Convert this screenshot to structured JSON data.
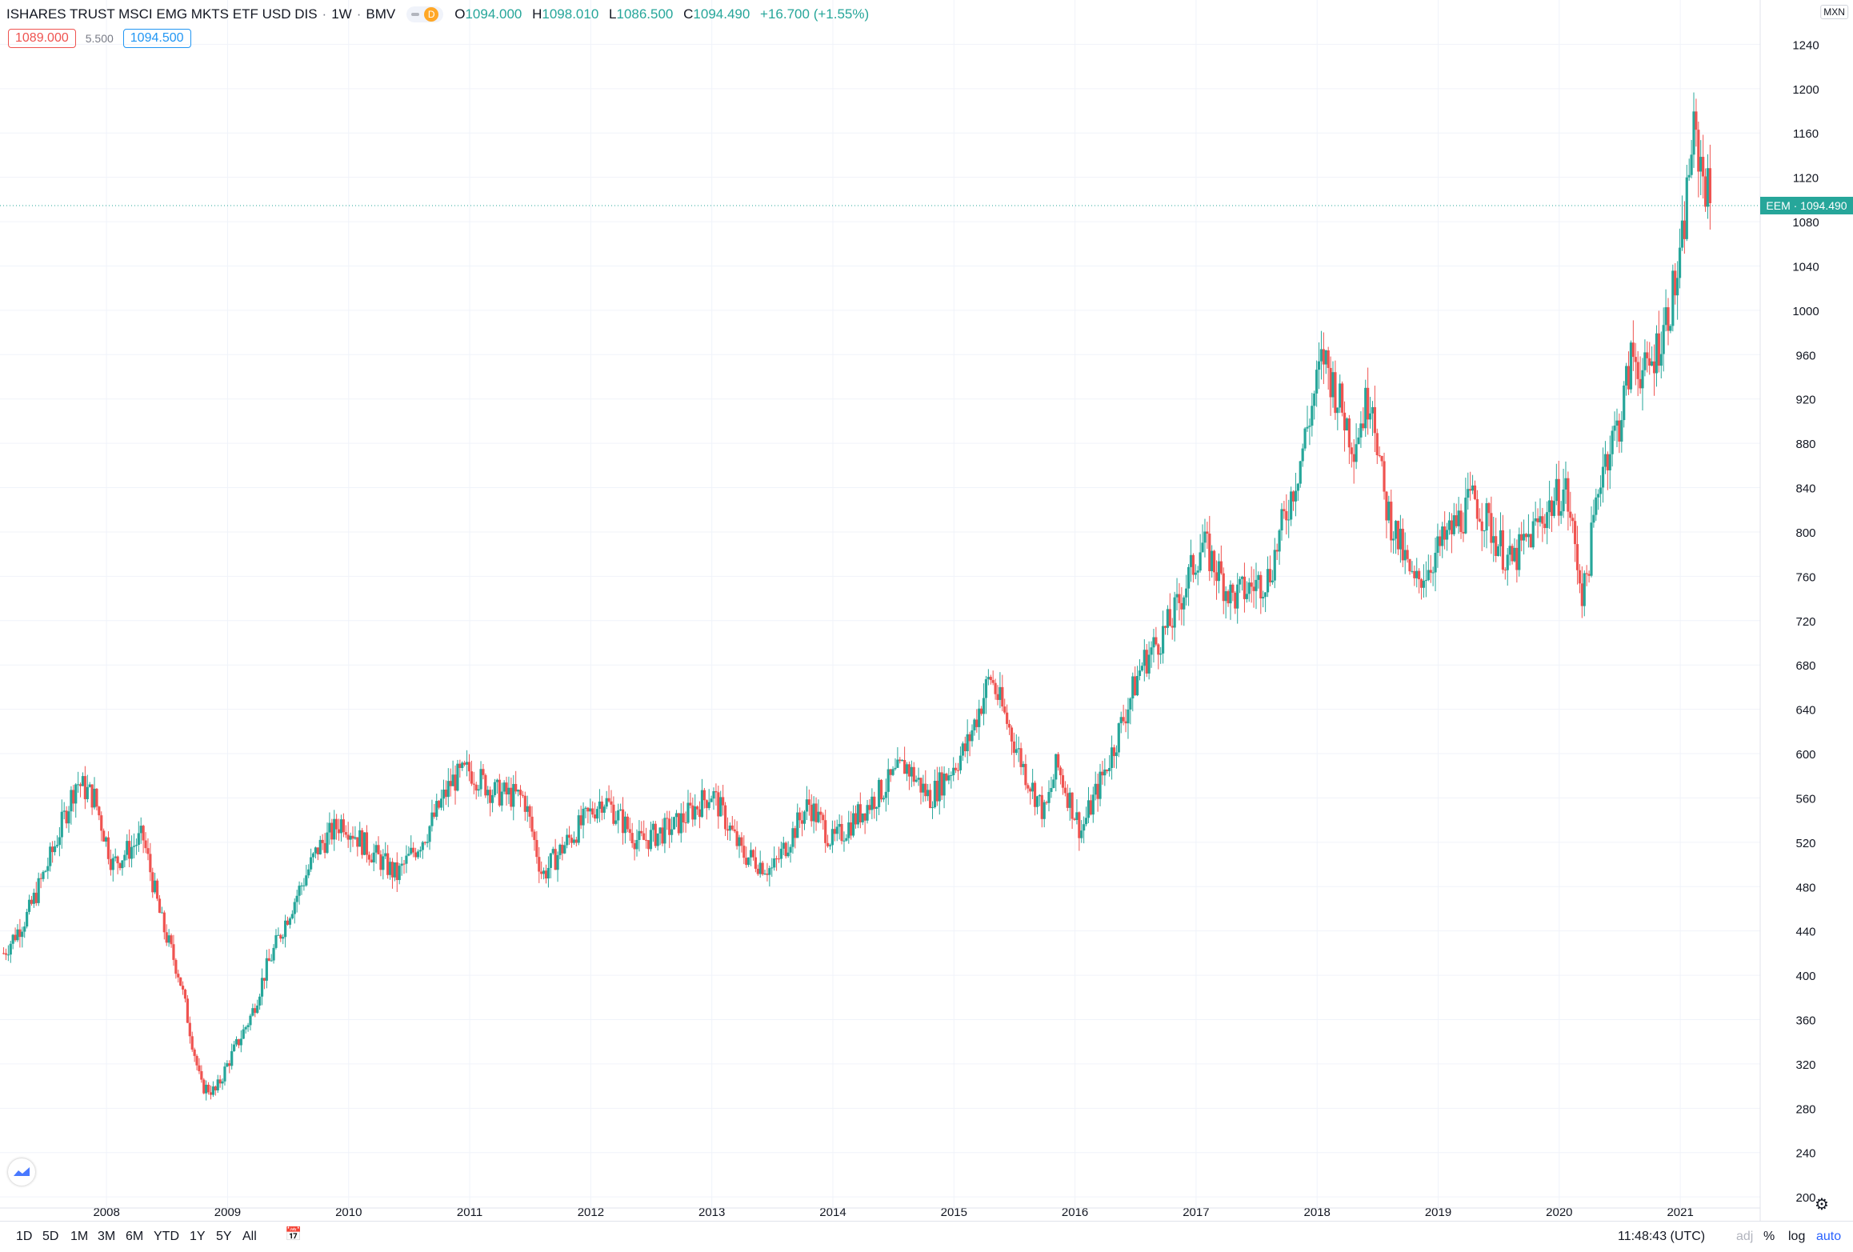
{
  "header": {
    "symbol": "ISHARES TRUST MSCI EMG MKTS ETF USD DIS",
    "interval": "1W",
    "exchange": "BMV",
    "status": "D",
    "ohlc": [
      {
        "label": "O",
        "value": "1094.000"
      },
      {
        "label": "H",
        "value": "1098.010"
      },
      {
        "label": "L",
        "value": "1086.500"
      },
      {
        "label": "C",
        "value": "1094.490"
      }
    ],
    "change": "+16.700 (+1.55%)"
  },
  "quote": {
    "bid": "1089.000",
    "spread": "5.500",
    "ask": "1094.500"
  },
  "currency": "MXN",
  "price_label": "EEM · 1094.490",
  "timeframes": [
    "1D",
    "5D",
    "1M",
    "3M",
    "6M",
    "YTD",
    "1Y",
    "5Y",
    "All"
  ],
  "clock": "11:48:43 (UTC)",
  "options": [
    "adj",
    "%",
    "log",
    "auto"
  ],
  "colors": {
    "up": "#26a69a",
    "down": "#ef5350",
    "grid": "#f0f3fa",
    "last_price": "#26a69a"
  },
  "icons": [
    "tradingview-logo-icon",
    "calendar-goto-icon",
    "gear-icon"
  ],
  "chart_data": {
    "type": "candlestick",
    "title": "ISHARES TRUST MSCI EMG MKTS ETF USD DIS",
    "x_ticks": [
      "2008",
      "2009",
      "2010",
      "2011",
      "2012",
      "2013",
      "2014",
      "2015",
      "2016",
      "2017",
      "2018",
      "2019",
      "2020",
      "2021"
    ],
    "y_ticks": [
      "1240",
      "1200",
      "1160",
      "1120",
      "1080",
      "1040",
      "1000",
      "960",
      "920",
      "880",
      "840",
      "800",
      "760",
      "720",
      "680",
      "640",
      "600",
      "560",
      "520",
      "480",
      "440",
      "400",
      "360",
      "320",
      "280",
      "240",
      "200"
    ],
    "x_range": [
      2007.12,
      2021.66
    ],
    "ylim": [
      190,
      1280
    ],
    "last_price": 1094.49,
    "grid": true,
    "weekly_closes_keypoints": [
      {
        "t": 2007.15,
        "v": 420
      },
      {
        "t": 2007.35,
        "v": 455
      },
      {
        "t": 2007.55,
        "v": 510
      },
      {
        "t": 2007.75,
        "v": 575
      },
      {
        "t": 2007.9,
        "v": 560
      },
      {
        "t": 2008.05,
        "v": 500
      },
      {
        "t": 2008.3,
        "v": 525
      },
      {
        "t": 2008.45,
        "v": 450
      },
      {
        "t": 2008.6,
        "v": 400
      },
      {
        "t": 2008.78,
        "v": 300
      },
      {
        "t": 2008.9,
        "v": 295
      },
      {
        "t": 2009.0,
        "v": 320
      },
      {
        "t": 2009.2,
        "v": 365
      },
      {
        "t": 2009.3,
        "v": 400
      },
      {
        "t": 2009.5,
        "v": 455
      },
      {
        "t": 2009.75,
        "v": 515
      },
      {
        "t": 2009.95,
        "v": 540
      },
      {
        "t": 2010.15,
        "v": 515
      },
      {
        "t": 2010.4,
        "v": 490
      },
      {
        "t": 2010.65,
        "v": 530
      },
      {
        "t": 2010.85,
        "v": 575
      },
      {
        "t": 2011.0,
        "v": 585
      },
      {
        "t": 2011.2,
        "v": 565
      },
      {
        "t": 2011.45,
        "v": 560
      },
      {
        "t": 2011.6,
        "v": 490
      },
      {
        "t": 2011.8,
        "v": 520
      },
      {
        "t": 2012.1,
        "v": 560
      },
      {
        "t": 2012.4,
        "v": 520
      },
      {
        "t": 2012.7,
        "v": 535
      },
      {
        "t": 2013.0,
        "v": 565
      },
      {
        "t": 2013.25,
        "v": 510
      },
      {
        "t": 2013.5,
        "v": 495
      },
      {
        "t": 2013.8,
        "v": 555
      },
      {
        "t": 2014.0,
        "v": 520
      },
      {
        "t": 2014.3,
        "v": 555
      },
      {
        "t": 2014.6,
        "v": 590
      },
      {
        "t": 2014.8,
        "v": 560
      },
      {
        "t": 2015.1,
        "v": 605
      },
      {
        "t": 2015.3,
        "v": 670
      },
      {
        "t": 2015.6,
        "v": 580
      },
      {
        "t": 2015.75,
        "v": 545
      },
      {
        "t": 2015.85,
        "v": 590
      },
      {
        "t": 2016.05,
        "v": 530
      },
      {
        "t": 2016.3,
        "v": 600
      },
      {
        "t": 2016.55,
        "v": 680
      },
      {
        "t": 2016.8,
        "v": 720
      },
      {
        "t": 2017.05,
        "v": 790
      },
      {
        "t": 2017.3,
        "v": 740
      },
      {
        "t": 2017.6,
        "v": 760
      },
      {
        "t": 2017.85,
        "v": 860
      },
      {
        "t": 2018.05,
        "v": 960
      },
      {
        "t": 2018.3,
        "v": 880
      },
      {
        "t": 2018.45,
        "v": 930
      },
      {
        "t": 2018.55,
        "v": 830
      },
      {
        "t": 2018.8,
        "v": 750
      },
      {
        "t": 2019.1,
        "v": 800
      },
      {
        "t": 2019.3,
        "v": 830
      },
      {
        "t": 2019.6,
        "v": 770
      },
      {
        "t": 2019.9,
        "v": 820
      },
      {
        "t": 2020.05,
        "v": 840
      },
      {
        "t": 2020.2,
        "v": 740
      },
      {
        "t": 2020.35,
        "v": 860
      },
      {
        "t": 2020.5,
        "v": 900
      },
      {
        "t": 2020.6,
        "v": 960
      },
      {
        "t": 2020.72,
        "v": 940
      },
      {
        "t": 2020.85,
        "v": 980
      },
      {
        "t": 2021.0,
        "v": 1040
      },
      {
        "t": 2021.1,
        "v": 1160
      },
      {
        "t": 2021.18,
        "v": 1130
      },
      {
        "t": 2021.25,
        "v": 1094.49
      }
    ]
  }
}
